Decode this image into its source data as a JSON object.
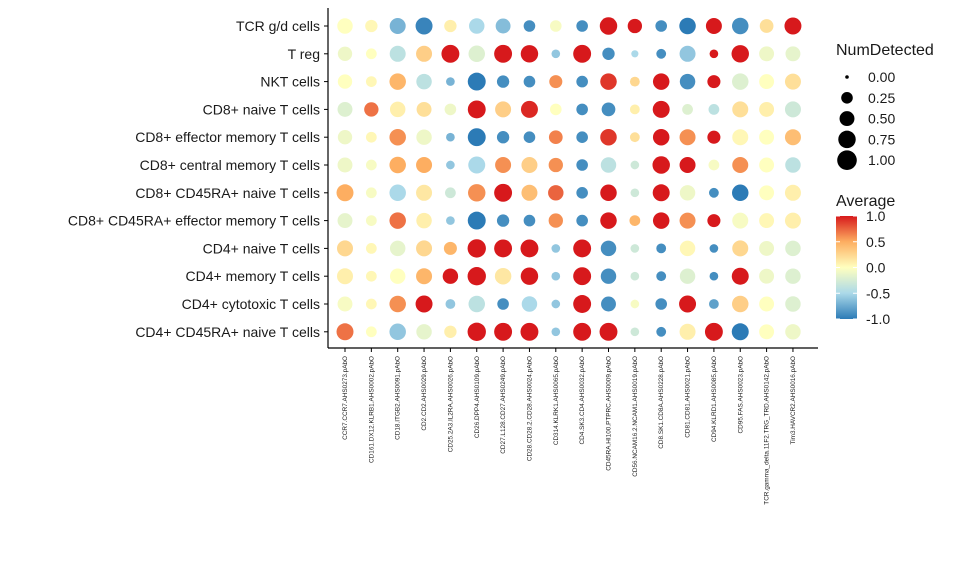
{
  "chart_data": {
    "type": "dotplot",
    "title": "",
    "xlabel": "",
    "ylabel": "",
    "rows": [
      "TCR g/d cells",
      "T reg",
      "NKT cells",
      "CD8+ naive T cells",
      "CD8+ effector memory T cells",
      "CD8+ central memory T cells",
      "CD8+ CD45RA+ naive T cells",
      "CD8+ CD45RA+ effector memory T cells",
      "CD4+ naive T cells",
      "CD4+ memory T cells",
      "CD4+ cytotoxic T cells",
      "CD4+ CD45RA+ naive T cells"
    ],
    "columns": [
      "CCR7.CCR7.AHS0273.pAbO",
      "CD161.DX12.KLRB1.AHS0002.pAbO",
      "CD18.ITGB2.AHS0091.pAbO",
      "CD2.CD2.AHS0029.pAbO",
      "CD25.2A3.IL2RA.AHS0026.pAbO",
      "CD26.DPP4.AHS0109.pAbO",
      "CD27.L128.CD27.AHS0249.pAbO",
      "CD28.CD28.2.CD28.AHS0024.pAbO",
      "CD314.KLRK1.AHS0065.pAbO",
      "CD4.SK3.CD4.AHS0032.pAbO",
      "CD45RA.HI100.PTPRC.AHS0009.pAbO",
      "CD56.NCAM16.2.NCAM1.AHS0019.pAbO",
      "CD8.SK1.CD8A.AHS0228.pAbO",
      "CD81.CD81.AHS0021.pAbO",
      "CD94.KLRD1.AHS0085.pAbO",
      "CD95.FAS.AHS0023.pAbO",
      "TCR.gamma_delta.11F2.TRG_TRD.AHS0142.pAbO",
      "Tim3.HAVCR2.AHS0016.pAbO"
    ],
    "size_legend": {
      "title": "NumDetected",
      "breaks": [
        0.0,
        0.25,
        0.5,
        0.75,
        1.0
      ],
      "labels": [
        "0.00",
        "0.25",
        "0.50",
        "0.75",
        "1.00"
      ]
    },
    "color_legend": {
      "title": "Average",
      "breaks": [
        1.0,
        0.5,
        0.0,
        -0.5,
        -1.0
      ],
      "labels": [
        "1.0",
        "0.5",
        "0.0",
        "-0.5",
        "-1.0"
      ],
      "colors": [
        "#d7191c",
        "#fdae61",
        "#ffffbf",
        "#abd9e9",
        "#2c7bb6"
      ]
    },
    "average": [
      [
        0.0,
        0.05,
        -0.7,
        -0.95,
        0.1,
        -0.5,
        -0.65,
        -0.9,
        -0.05,
        -0.9,
        1.0,
        1.0,
        -0.9,
        -1.0,
        1.0,
        -0.9,
        0.2,
        1.0
      ],
      [
        -0.1,
        0.0,
        -0.4,
        0.3,
        1.0,
        -0.2,
        1.0,
        1.0,
        -0.6,
        1.0,
        -0.9,
        -0.5,
        -0.9,
        -0.6,
        1.0,
        1.0,
        -0.1,
        -0.15
      ],
      [
        0.0,
        0.05,
        0.45,
        -0.4,
        -0.7,
        -1.0,
        -0.9,
        -0.9,
        0.6,
        -0.9,
        0.9,
        0.25,
        1.0,
        -0.9,
        1.0,
        -0.2,
        0.0,
        0.2
      ],
      [
        -0.2,
        0.7,
        0.1,
        0.2,
        -0.1,
        1.0,
        0.3,
        0.95,
        0.0,
        -0.9,
        -0.9,
        0.1,
        1.0,
        -0.2,
        -0.4,
        0.2,
        0.1,
        -0.3
      ],
      [
        -0.1,
        0.05,
        0.6,
        -0.1,
        -0.7,
        -1.0,
        -0.9,
        -0.9,
        0.65,
        -0.9,
        0.9,
        0.2,
        1.0,
        0.6,
        1.0,
        0.05,
        0.0,
        0.4
      ],
      [
        -0.1,
        -0.05,
        0.5,
        0.5,
        -0.6,
        -0.5,
        0.6,
        0.3,
        0.6,
        -0.9,
        -0.4,
        -0.3,
        1.0,
        1.0,
        -0.05,
        0.6,
        0.0,
        -0.4
      ],
      [
        0.5,
        -0.05,
        -0.5,
        0.15,
        -0.3,
        0.6,
        1.0,
        0.4,
        0.75,
        -0.9,
        1.0,
        -0.3,
        1.0,
        -0.1,
        -0.9,
        -1.0,
        0.0,
        0.1
      ],
      [
        -0.15,
        -0.05,
        0.7,
        0.1,
        -0.6,
        -1.0,
        -0.9,
        -0.9,
        0.6,
        -0.9,
        1.0,
        0.45,
        1.0,
        0.6,
        1.0,
        -0.05,
        0.05,
        0.1
      ],
      [
        0.25,
        0.05,
        -0.15,
        0.25,
        0.45,
        1.0,
        1.0,
        1.0,
        -0.6,
        1.0,
        -0.9,
        -0.3,
        -0.9,
        0.05,
        -0.9,
        0.25,
        -0.1,
        -0.2
      ],
      [
        0.1,
        0.05,
        0.0,
        0.45,
        1.0,
        1.0,
        0.15,
        1.0,
        -0.6,
        1.0,
        -0.9,
        -0.3,
        -0.9,
        -0.2,
        -0.9,
        1.0,
        -0.1,
        -0.2
      ],
      [
        -0.05,
        0.05,
        0.6,
        1.0,
        -0.6,
        -0.4,
        -0.9,
        -0.5,
        -0.6,
        1.0,
        -0.9,
        -0.05,
        -0.9,
        1.0,
        -0.8,
        0.3,
        0.0,
        -0.2
      ],
      [
        0.7,
        0.0,
        -0.6,
        -0.15,
        0.1,
        1.0,
        1.0,
        1.0,
        -0.6,
        1.0,
        1.0,
        -0.3,
        -0.9,
        0.1,
        1.0,
        -1.0,
        0.0,
        -0.1
      ]
    ],
    "num_detected": [
      [
        0.55,
        0.3,
        0.6,
        0.7,
        0.3,
        0.55,
        0.5,
        0.25,
        0.25,
        0.25,
        0.75,
        0.45,
        0.25,
        0.65,
        0.6,
        0.65,
        0.4,
        0.7
      ],
      [
        0.45,
        0.2,
        0.6,
        0.6,
        0.8,
        0.65,
        0.8,
        0.75,
        0.1,
        0.8,
        0.3,
        0.05,
        0.15,
        0.6,
        0.1,
        0.75,
        0.5,
        0.5
      ],
      [
        0.45,
        0.2,
        0.65,
        0.55,
        0.1,
        0.8,
        0.3,
        0.25,
        0.35,
        0.25,
        0.65,
        0.15,
        0.65,
        0.55,
        0.35,
        0.65,
        0.5,
        0.6
      ],
      [
        0.5,
        0.45,
        0.55,
        0.5,
        0.25,
        0.8,
        0.6,
        0.7,
        0.25,
        0.25,
        0.4,
        0.15,
        0.7,
        0.2,
        0.2,
        0.6,
        0.5,
        0.6
      ],
      [
        0.45,
        0.2,
        0.65,
        0.55,
        0.1,
        0.8,
        0.3,
        0.25,
        0.4,
        0.25,
        0.65,
        0.15,
        0.65,
        0.6,
        0.35,
        0.6,
        0.5,
        0.6
      ],
      [
        0.5,
        0.2,
        0.65,
        0.6,
        0.1,
        0.7,
        0.6,
        0.6,
        0.45,
        0.25,
        0.55,
        0.1,
        0.75,
        0.6,
        0.2,
        0.6,
        0.5,
        0.55
      ],
      [
        0.7,
        0.2,
        0.65,
        0.6,
        0.2,
        0.75,
        0.8,
        0.6,
        0.55,
        0.25,
        0.65,
        0.1,
        0.7,
        0.55,
        0.15,
        0.65,
        0.5,
        0.6
      ],
      [
        0.5,
        0.2,
        0.65,
        0.55,
        0.1,
        0.8,
        0.3,
        0.25,
        0.45,
        0.25,
        0.65,
        0.2,
        0.65,
        0.6,
        0.35,
        0.6,
        0.5,
        0.6
      ],
      [
        0.6,
        0.2,
        0.55,
        0.6,
        0.35,
        0.85,
        0.8,
        0.8,
        0.1,
        0.8,
        0.55,
        0.1,
        0.15,
        0.55,
        0.1,
        0.6,
        0.5,
        0.55
      ],
      [
        0.6,
        0.2,
        0.55,
        0.6,
        0.55,
        0.85,
        0.65,
        0.75,
        0.1,
        0.8,
        0.55,
        0.1,
        0.15,
        0.55,
        0.1,
        0.7,
        0.5,
        0.55
      ],
      [
        0.5,
        0.2,
        0.65,
        0.7,
        0.15,
        0.65,
        0.25,
        0.55,
        0.1,
        0.8,
        0.5,
        0.1,
        0.25,
        0.7,
        0.15,
        0.65,
        0.5,
        0.55
      ],
      [
        0.7,
        0.2,
        0.65,
        0.55,
        0.3,
        0.85,
        0.8,
        0.8,
        0.1,
        0.8,
        0.8,
        0.1,
        0.15,
        0.6,
        0.8,
        0.7,
        0.5,
        0.55
      ]
    ]
  }
}
